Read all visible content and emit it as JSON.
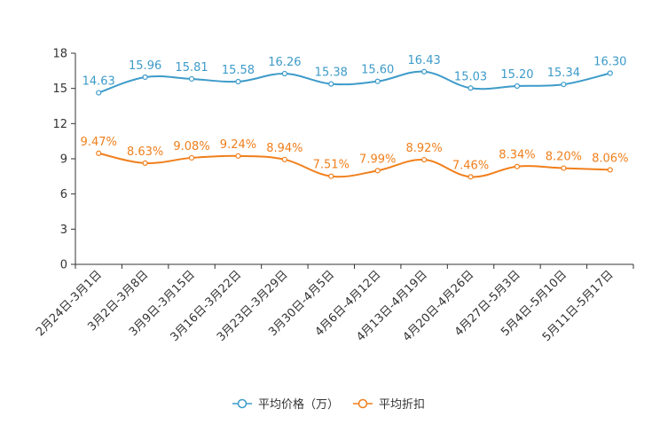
{
  "chart_data": {
    "type": "line",
    "title": "",
    "xlabel": "",
    "ylabel": "",
    "ylim": [
      0,
      18
    ],
    "yticks": [
      0,
      3,
      6,
      9,
      12,
      15,
      18
    ],
    "grid": false,
    "legend_position": "bottom-center",
    "categories": [
      "2月24日-3月1日",
      "3月2日-3月8日",
      "3月9日-3月15日",
      "3月16日-3月22日",
      "3月23日-3月29日",
      "3月30日-4月5日",
      "4月6日-4月12日",
      "4月13日-4月19日",
      "4月20日-4月26日",
      "4月27日-5月3日",
      "5月4日-5月10日",
      "5月11日-5月17日"
    ],
    "series": [
      {
        "name": "平均价格（万）",
        "color": "#3d9bc9",
        "values": [
          14.63,
          15.96,
          15.81,
          15.58,
          16.26,
          15.38,
          15.6,
          16.43,
          15.03,
          15.2,
          15.34,
          16.3
        ],
        "labels": [
          "14.63",
          "15.96",
          "15.81",
          "15.58",
          "16.26",
          "15.38",
          "15.60",
          "16.43",
          "15.03",
          "15.20",
          "15.34",
          "16.30"
        ]
      },
      {
        "name": "平均折扣",
        "color": "#f07f1c",
        "values": [
          9.47,
          8.63,
          9.08,
          9.24,
          8.94,
          7.51,
          7.99,
          8.92,
          7.46,
          8.34,
          8.2,
          8.06
        ],
        "labels": [
          "9.47%",
          "8.63%",
          "9.08%",
          "9.24%",
          "8.94%",
          "7.51%",
          "7.99%",
          "8.92%",
          "7.46%",
          "8.34%",
          "8.20%",
          "8.06%"
        ]
      }
    ]
  }
}
